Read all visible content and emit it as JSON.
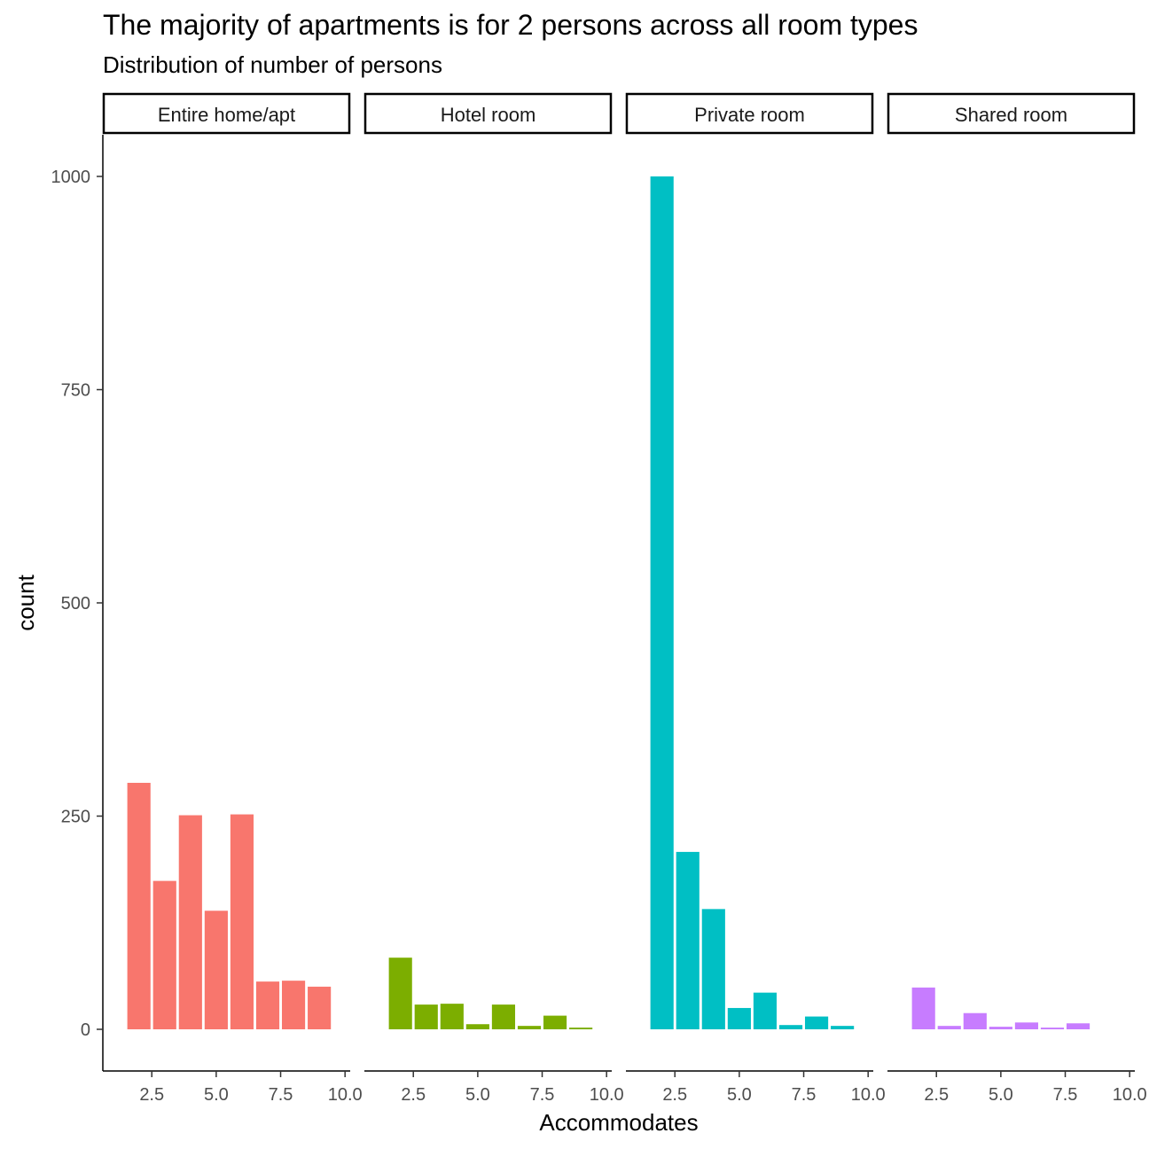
{
  "chart_data": {
    "type": "bar",
    "title": "The majority of apartments is for 2 persons across all room types",
    "subtitle": "Distribution of number of persons",
    "xlabel": "Accommodates",
    "ylabel": "count",
    "xlim": [
      0.6,
      10.2
    ],
    "ylim": [
      -48,
      1050
    ],
    "x_ticks": [
      2.5,
      5.0,
      7.5,
      10.0
    ],
    "x_tick_labels": [
      "2.5",
      "5.0",
      "7.5",
      "10.0"
    ],
    "y_ticks": [
      0,
      250,
      500,
      750,
      1000
    ],
    "y_tick_labels": [
      "0",
      "250",
      "500",
      "750",
      "1000"
    ],
    "grid": false,
    "legend": "none",
    "x": [
      2,
      3,
      4,
      5,
      6,
      7,
      8,
      9
    ],
    "facets": [
      {
        "name": "Entire home/apt",
        "color": "#F8766D",
        "values": [
          289,
          174,
          251,
          139,
          252,
          56,
          57,
          50
        ]
      },
      {
        "name": "Hotel room",
        "color": "#7CAE00",
        "values": [
          84,
          29,
          30,
          6,
          29,
          4,
          16,
          2
        ]
      },
      {
        "name": "Private room",
        "color": "#00BFC4",
        "values": [
          1000,
          208,
          141,
          25,
          43,
          5,
          15,
          4
        ]
      },
      {
        "name": "Shared room",
        "color": "#C77CFF",
        "values": [
          49,
          4,
          19,
          3,
          8,
          2,
          7,
          0
        ]
      }
    ]
  }
}
